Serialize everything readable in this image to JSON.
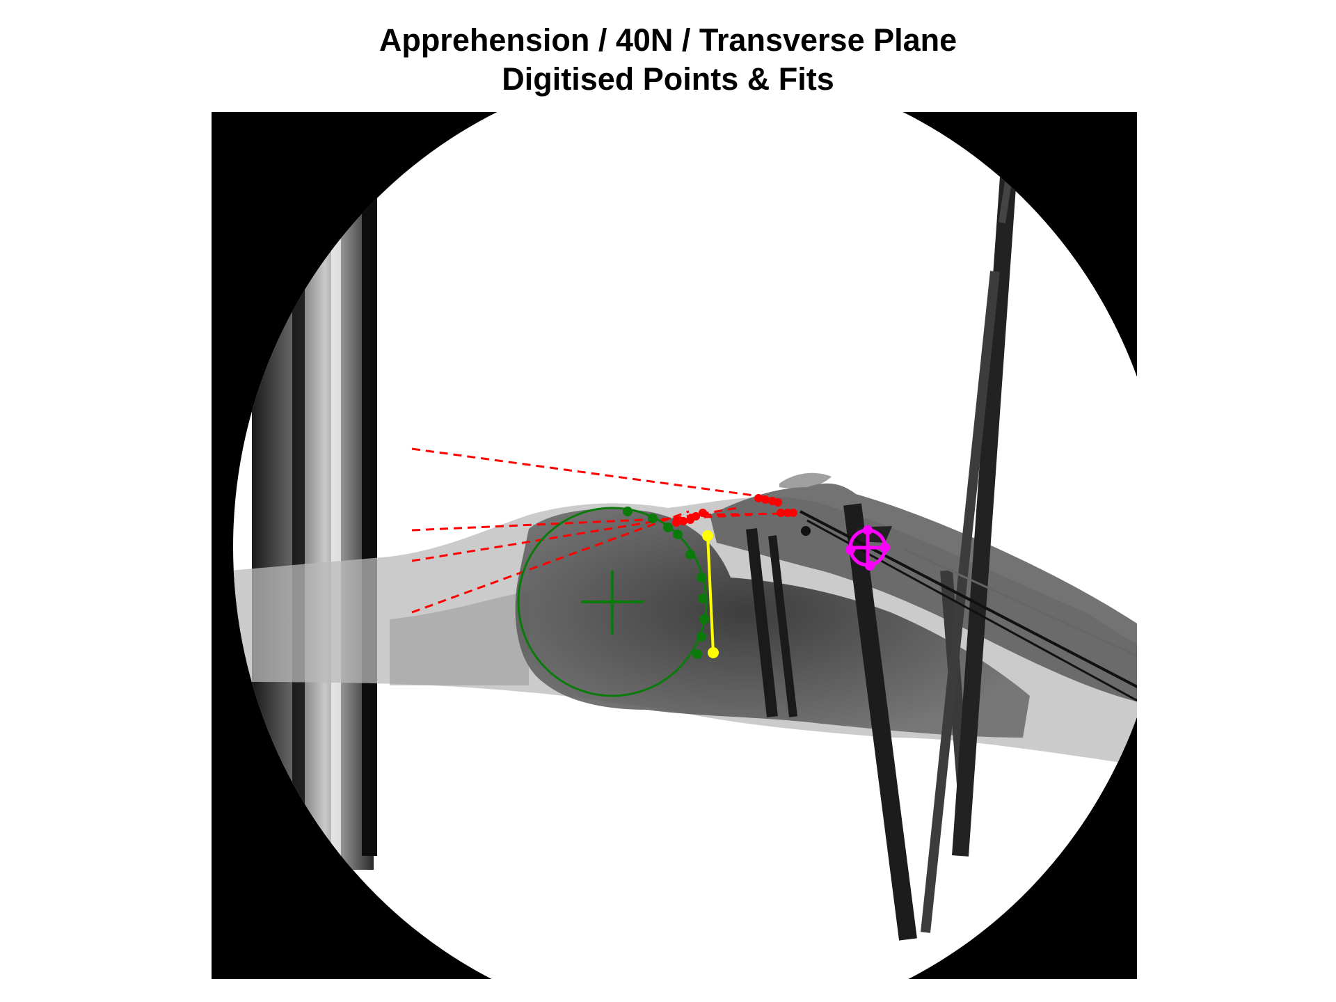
{
  "figure": {
    "title": "Apprehension / 40N / Transverse Plane",
    "subtitle": "Digitised Points & Fits"
  },
  "colors": {
    "background": "#ffffff",
    "xray_field": "#000000",
    "humeral_head_fit": "#0a7a0a",
    "glenoid_points": "#ff0000",
    "glenoid_line": "#ffff00",
    "marker": "#ff00ff"
  },
  "icons": [
    "crosshair-icon"
  ]
}
